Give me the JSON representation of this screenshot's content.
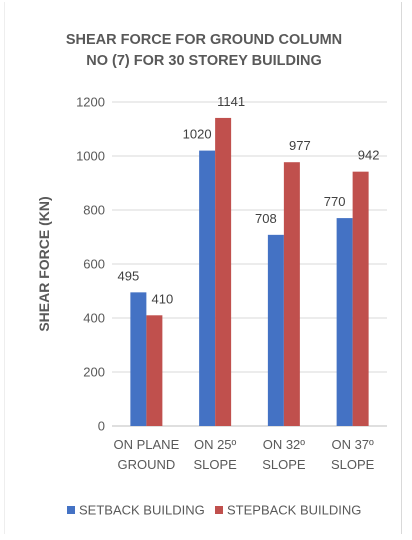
{
  "chart_data": {
    "type": "bar",
    "title_lines": [
      "SHEAR FORCE FOR GROUND COLUMN",
      "NO (7) FOR 30 STOREY BUILDING"
    ],
    "ylabel": "SHEAR FORCE (KN)",
    "xlabel": "",
    "ylim": [
      0,
      1200
    ],
    "yticks": [
      0,
      200,
      400,
      600,
      800,
      1000,
      1200
    ],
    "grid": true,
    "legend_position": "bottom",
    "categories": [
      [
        "ON PLANE",
        "GROUND"
      ],
      [
        "ON 25º",
        "SLOPE"
      ],
      [
        "ON 32º",
        "SLOPE"
      ],
      [
        "ON 37º",
        "SLOPE"
      ]
    ],
    "series": [
      {
        "name": "SETBACK BUILDING",
        "color": "#4472c4",
        "values": [
          495,
          1020,
          708,
          770
        ]
      },
      {
        "name": "STEPBACK BUILDING",
        "color": "#c0504d",
        "values": [
          410,
          1141,
          977,
          942
        ]
      }
    ]
  }
}
